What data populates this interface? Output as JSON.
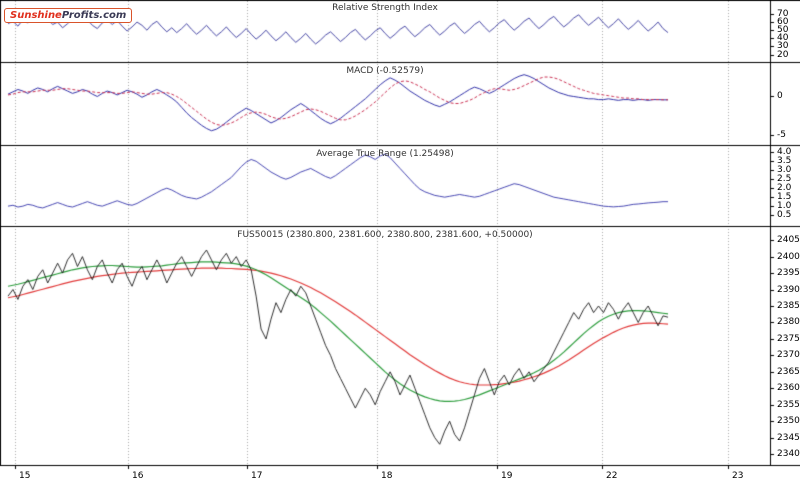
{
  "logo": {
    "part1": "Sunshine",
    "part2": "Profits.com"
  },
  "colors": {
    "grid": "#aaaaaa",
    "frame": "#000000",
    "rsi": "#33339c",
    "macd": "#3333aa",
    "macd_signal": "#cc3355",
    "atr": "#3333aa",
    "price": "#1a1a1a",
    "ma_fast": "#2e9e3e",
    "ma_slow": "#e23b3b"
  },
  "x_axis": {
    "labels": [
      "15",
      "16",
      "17",
      "18",
      "19",
      "22",
      "23"
    ],
    "positions": [
      15,
      128,
      247,
      377,
      497,
      602,
      728
    ],
    "data_x_start": 8,
    "data_x_end": 668
  },
  "chart_data": [
    {
      "type": "line",
      "panel": "rsi",
      "title": "Relative Strength Index",
      "ylim": [
        12,
        86
      ],
      "yticks": [
        "70",
        "60",
        "50",
        "40",
        "30",
        "20"
      ],
      "series": [
        {
          "name": "rsi",
          "color": "#33339c",
          "width": 0.9,
          "values": [
            58,
            61,
            55,
            63,
            59,
            66,
            62,
            68,
            64,
            57,
            60,
            53,
            58,
            64,
            61,
            67,
            63,
            56,
            52,
            59,
            63,
            57,
            62,
            55,
            49,
            54,
            60,
            56,
            50,
            57,
            61,
            54,
            48,
            53,
            47,
            52,
            58,
            51,
            45,
            50,
            56,
            49,
            43,
            48,
            54,
            47,
            41,
            46,
            52,
            45,
            39,
            44,
            50,
            43,
            37,
            42,
            48,
            41,
            35,
            40,
            46,
            39,
            33,
            38,
            44,
            48,
            42,
            36,
            41,
            47,
            51,
            44,
            38,
            43,
            49,
            53,
            46,
            40,
            45,
            51,
            55,
            48,
            42,
            47,
            53,
            57,
            50,
            44,
            49,
            55,
            59,
            52,
            46,
            51,
            57,
            61,
            54,
            48,
            53,
            59,
            63,
            56,
            50,
            55,
            61,
            65,
            58,
            52,
            57,
            63,
            67,
            60,
            54,
            59,
            65,
            69,
            62,
            56,
            61,
            66,
            59,
            53,
            58,
            64,
            57,
            51,
            56,
            62,
            55,
            49,
            54,
            60,
            52,
            47
          ]
        }
      ]
    },
    {
      "type": "line",
      "panel": "macd",
      "title": "MACD (-0.52579)",
      "ylim": [
        -6.2,
        4.2
      ],
      "yticks": [
        "0",
        "-5"
      ],
      "series": [
        {
          "name": "macd",
          "color": "#3333aa",
          "width": 1,
          "values": [
            0.2,
            0.5,
            0.8,
            0.6,
            0.3,
            0.7,
            1.0,
            0.8,
            0.5,
            0.9,
            1.2,
            0.9,
            0.6,
            0.3,
            0.5,
            0.8,
            0.6,
            0.2,
            -0.1,
            0.3,
            0.6,
            0.4,
            0.1,
            0.4,
            0.7,
            0.5,
            0.2,
            -0.2,
            0.1,
            0.5,
            0.8,
            0.5,
            0.1,
            -0.3,
            -0.8,
            -1.5,
            -2.2,
            -2.8,
            -3.3,
            -3.8,
            -4.2,
            -4.5,
            -4.3,
            -3.9,
            -3.4,
            -2.9,
            -2.4,
            -2.0,
            -1.6,
            -1.9,
            -2.3,
            -2.7,
            -3.1,
            -3.5,
            -3.2,
            -2.8,
            -2.3,
            -1.8,
            -1.4,
            -1.0,
            -1.4,
            -1.9,
            -2.4,
            -2.9,
            -3.3,
            -3.6,
            -3.3,
            -2.9,
            -2.4,
            -1.9,
            -1.4,
            -0.9,
            -0.4,
            0.2,
            0.8,
            1.4,
            1.9,
            2.3,
            2.0,
            1.6,
            1.1,
            0.6,
            0.2,
            -0.2,
            -0.6,
            -0.9,
            -1.2,
            -1.4,
            -1.1,
            -0.8,
            -0.4,
            0.0,
            0.4,
            0.8,
            1.1,
            0.9,
            0.6,
            0.3,
            0.6,
            1.0,
            1.4,
            1.8,
            2.2,
            2.5,
            2.7,
            2.5,
            2.2,
            1.8,
            1.4,
            1.0,
            0.7,
            0.4,
            0.2,
            0.0,
            -0.1,
            -0.2,
            -0.3,
            -0.4,
            -0.4,
            -0.5,
            -0.5,
            -0.4,
            -0.5,
            -0.6,
            -0.5,
            -0.5,
            -0.6,
            -0.5,
            -0.5,
            -0.6,
            -0.5,
            -0.5,
            -0.53,
            -0.53
          ]
        },
        {
          "name": "macd-signal",
          "color": "#cc3355",
          "width": 1,
          "dash": true,
          "values": [
            0.1,
            0.2,
            0.4,
            0.5,
            0.5,
            0.5,
            0.6,
            0.7,
            0.7,
            0.7,
            0.8,
            0.9,
            0.9,
            0.8,
            0.7,
            0.6,
            0.6,
            0.5,
            0.4,
            0.4,
            0.4,
            0.4,
            0.3,
            0.3,
            0.4,
            0.5,
            0.4,
            0.3,
            0.2,
            0.2,
            0.3,
            0.4,
            0.4,
            0.2,
            -0.1,
            -0.5,
            -1.0,
            -1.5,
            -2.0,
            -2.5,
            -3.0,
            -3.4,
            -3.7,
            -3.8,
            -3.7,
            -3.5,
            -3.2,
            -2.8,
            -2.4,
            -2.2,
            -2.1,
            -2.2,
            -2.4,
            -2.7,
            -2.9,
            -3.0,
            -2.9,
            -2.7,
            -2.4,
            -2.1,
            -1.8,
            -1.7,
            -1.8,
            -2.0,
            -2.3,
            -2.6,
            -2.9,
            -3.1,
            -3.1,
            -2.9,
            -2.6,
            -2.2,
            -1.8,
            -1.3,
            -0.8,
            -0.2,
            0.4,
            1.0,
            1.5,
            1.8,
            1.9,
            1.8,
            1.5,
            1.2,
            0.8,
            0.5,
            0.1,
            -0.3,
            -0.6,
            -0.9,
            -1.0,
            -1.0,
            -0.8,
            -0.6,
            -0.3,
            0.1,
            0.4,
            0.7,
            0.9,
            0.9,
            0.8,
            0.7,
            0.8,
            1.0,
            1.3,
            1.6,
            1.9,
            2.2,
            2.4,
            2.4,
            2.3,
            2.1,
            1.8,
            1.5,
            1.2,
            0.9,
            0.7,
            0.5,
            0.3,
            0.2,
            0.1,
            0.0,
            -0.1,
            -0.2,
            -0.3,
            -0.3,
            -0.4,
            -0.4,
            -0.5,
            -0.5,
            -0.5,
            -0.5,
            -0.52,
            -0.52
          ]
        }
      ]
    },
    {
      "type": "line",
      "panel": "atr",
      "title": "Average True Range (1.25498)",
      "ylim": [
        -0.05,
        4.35
      ],
      "yticks": [
        "4.0",
        "3.5",
        "3.0",
        "2.5",
        "2.0",
        "1.5",
        "1.0",
        "0.5"
      ],
      "series": [
        {
          "name": "atr",
          "color": "#3333aa",
          "width": 0.9,
          "values": [
            1.0,
            1.05,
            0.95,
            1.0,
            1.1,
            1.05,
            0.95,
            0.9,
            1.0,
            1.1,
            1.2,
            1.1,
            1.0,
            0.95,
            1.05,
            1.15,
            1.25,
            1.15,
            1.05,
            1.0,
            1.1,
            1.2,
            1.3,
            1.2,
            1.1,
            1.05,
            1.15,
            1.3,
            1.45,
            1.6,
            1.75,
            1.9,
            2.0,
            1.9,
            1.75,
            1.6,
            1.5,
            1.45,
            1.4,
            1.5,
            1.65,
            1.8,
            2.0,
            2.2,
            2.4,
            2.6,
            2.9,
            3.2,
            3.45,
            3.6,
            3.5,
            3.3,
            3.1,
            2.9,
            2.75,
            2.6,
            2.5,
            2.6,
            2.75,
            2.9,
            3.0,
            3.1,
            2.95,
            2.8,
            2.65,
            2.55,
            2.7,
            2.9,
            3.1,
            3.3,
            3.5,
            3.7,
            3.85,
            3.75,
            3.6,
            3.8,
            3.9,
            3.7,
            3.4,
            3.1,
            2.8,
            2.5,
            2.2,
            1.95,
            1.8,
            1.7,
            1.6,
            1.55,
            1.5,
            1.55,
            1.6,
            1.65,
            1.6,
            1.55,
            1.5,
            1.55,
            1.65,
            1.75,
            1.85,
            1.95,
            2.05,
            2.15,
            2.25,
            2.2,
            2.1,
            2.0,
            1.9,
            1.8,
            1.7,
            1.6,
            1.5,
            1.45,
            1.4,
            1.35,
            1.3,
            1.25,
            1.2,
            1.15,
            1.1,
            1.05,
            1.0,
            0.98,
            0.96,
            0.98,
            1.0,
            1.05,
            1.1,
            1.12,
            1.15,
            1.18,
            1.2,
            1.22,
            1.25,
            1.25
          ]
        }
      ]
    },
    {
      "type": "line",
      "panel": "price",
      "title": "FUS50015 (2380.800, 2381.600, 2380.800, 2381.600, +0.50000)",
      "ylim": [
        2337,
        2409
      ],
      "yticks": [
        "2405",
        "2400",
        "2395",
        "2390",
        "2385",
        "2380",
        "2375",
        "2370",
        "2365",
        "2360",
        "2355",
        "2350",
        "2345",
        "2340"
      ],
      "series": [
        {
          "name": "ma-slow",
          "color": "#e23b3b",
          "width": 1.2,
          "values": [
            2387.5,
            2387.8,
            2388.1,
            2388.5,
            2388.9,
            2389.3,
            2389.7,
            2390.1,
            2390.5,
            2390.9,
            2391.3,
            2391.7,
            2392.1,
            2392.5,
            2392.8,
            2393.1,
            2393.4,
            2393.7,
            2394,
            2394.2,
            2394.4,
            2394.6,
            2394.8,
            2395,
            2395.1,
            2395.2,
            2395.3,
            2395.4,
            2395.5,
            2395.6,
            2395.7,
            2395.8,
            2395.9,
            2396,
            2396.1,
            2396.2,
            2396.3,
            2396.4,
            2396.4,
            2396.5,
            2396.5,
            2396.5,
            2396.5,
            2396.5,
            2396.4,
            2396.4,
            2396.3,
            2396.2,
            2396.1,
            2396,
            2395.8,
            2395.6,
            2395.3,
            2395,
            2394.6,
            2394.2,
            2393.7,
            2393.2,
            2392.6,
            2392,
            2391.3,
            2390.6,
            2389.8,
            2389,
            2388.1,
            2387.2,
            2386.3,
            2385.3,
            2384.3,
            2383.3,
            2382.3,
            2381.2,
            2380.1,
            2379,
            2377.9,
            2376.8,
            2375.7,
            2374.6,
            2373.5,
            2372.4,
            2371.3,
            2370.2,
            2369.2,
            2368.2,
            2367.2,
            2366.3,
            2365.4,
            2364.6,
            2363.8,
            2363.1,
            2362.5,
            2362,
            2361.6,
            2361.3,
            2361.1,
            2361,
            2361,
            2361,
            2361.1,
            2361.2,
            2361.4,
            2361.6,
            2361.9,
            2362.2,
            2362.6,
            2363,
            2363.5,
            2364,
            2364.6,
            2365.3,
            2366,
            2366.8,
            2367.7,
            2368.6,
            2369.6,
            2370.6,
            2371.6,
            2372.6,
            2373.6,
            2374.5,
            2375.4,
            2376.2,
            2377,
            2377.7,
            2378.3,
            2378.8,
            2379.2,
            2379.5,
            2379.7,
            2379.8,
            2379.8,
            2379.7,
            2379.6,
            2379.5
          ]
        },
        {
          "name": "ma-fast",
          "color": "#2e9e3e",
          "width": 1.2,
          "values": [
            2391,
            2391.3,
            2391.6,
            2392,
            2392.4,
            2392.8,
            2393.2,
            2393.6,
            2394,
            2394.4,
            2394.8,
            2395.2,
            2395.6,
            2396,
            2396.3,
            2396.6,
            2396.8,
            2397,
            2397.1,
            2397.2,
            2397.3,
            2397.3,
            2397.2,
            2397.1,
            2397,
            2396.9,
            2396.8,
            2396.8,
            2396.9,
            2397,
            2397.1,
            2397.2,
            2397.4,
            2397.6,
            2397.8,
            2398,
            2398.1,
            2398.2,
            2398.3,
            2398.4,
            2398.4,
            2398.4,
            2398.3,
            2398.2,
            2398.1,
            2398,
            2397.8,
            2397.5,
            2397.1,
            2396.6,
            2396,
            2395.3,
            2394.5,
            2393.6,
            2392.6,
            2391.6,
            2390.6,
            2389.6,
            2388.6,
            2387.6,
            2386.6,
            2385.5,
            2384.3,
            2383,
            2381.7,
            2380.4,
            2379,
            2377.6,
            2376.2,
            2374.8,
            2373.4,
            2372,
            2370.6,
            2369.2,
            2367.8,
            2366.4,
            2365,
            2363.7,
            2362.5,
            2361.4,
            2360.4,
            2359.5,
            2358.7,
            2358,
            2357.4,
            2356.9,
            2356.5,
            2356.2,
            2356,
            2356,
            2356.1,
            2356.3,
            2356.6,
            2357,
            2357.5,
            2358,
            2358.6,
            2359.2,
            2359.8,
            2360.4,
            2361,
            2361.6,
            2362.2,
            2362.8,
            2363.4,
            2364,
            2364.7,
            2365.5,
            2366.4,
            2367.4,
            2368.5,
            2369.7,
            2371,
            2372.4,
            2373.8,
            2375.2,
            2376.6,
            2377.9,
            2379.1,
            2380.2,
            2381.1,
            2381.9,
            2382.5,
            2383,
            2383.3,
            2383.5,
            2383.6,
            2383.6,
            2383.5,
            2383.4,
            2383.2,
            2383,
            2382.8,
            2382.6
          ]
        },
        {
          "name": "price",
          "color": "#1a1a1a",
          "width": 0.9,
          "values": [
            2388,
            2390,
            2387,
            2391,
            2393,
            2390,
            2394,
            2396,
            2392,
            2395,
            2398,
            2395,
            2399,
            2401,
            2397,
            2400,
            2396,
            2393,
            2397,
            2399,
            2395,
            2392,
            2396,
            2398,
            2394,
            2391,
            2395,
            2397,
            2393,
            2396,
            2399,
            2396,
            2392,
            2395,
            2398,
            2400,
            2397,
            2394,
            2397,
            2400,
            2402,
            2399,
            2396,
            2399,
            2401,
            2398,
            2400,
            2397,
            2399,
            2396,
            2388,
            2378,
            2375,
            2381,
            2386,
            2383,
            2387,
            2390,
            2388,
            2391,
            2389,
            2385,
            2381,
            2377,
            2373,
            2370,
            2366,
            2363,
            2360,
            2357,
            2354,
            2357,
            2360,
            2358,
            2355,
            2359,
            2362,
            2365,
            2362,
            2358,
            2361,
            2364,
            2360,
            2356,
            2352,
            2348,
            2345,
            2343,
            2347,
            2350,
            2346,
            2344,
            2348,
            2353,
            2358,
            2363,
            2366,
            2362,
            2358,
            2362,
            2364,
            2361,
            2364,
            2366,
            2363,
            2365,
            2362,
            2364,
            2366,
            2368,
            2371,
            2374,
            2377,
            2380,
            2383,
            2381,
            2384,
            2386,
            2383,
            2385,
            2383,
            2386,
            2384,
            2381,
            2384,
            2386,
            2383,
            2380,
            2383,
            2385,
            2382,
            2379,
            2382,
            2381.6
          ]
        }
      ]
    }
  ]
}
